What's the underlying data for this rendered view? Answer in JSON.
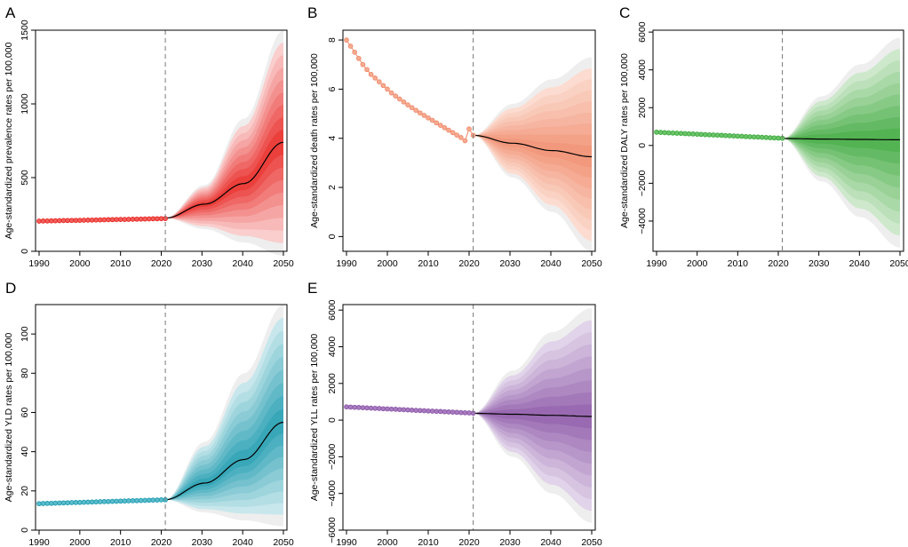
{
  "figure": {
    "description": "BAPC projections of age-standardized rates, 1990-2050",
    "vline_year": 2021
  },
  "chart_data": [
    {
      "id": "A",
      "panel_letter": "A",
      "type": "line",
      "ylabel": "Age-standardized prevalence rates per 100,000",
      "xlim": [
        1990,
        2050
      ],
      "ylim": [
        0,
        1500
      ],
      "xticks": [
        1990,
        2000,
        2010,
        2020,
        2030,
        2040,
        2050
      ],
      "yticks": [
        0,
        500,
        1000,
        1500
      ],
      "ytick_labels": [
        "0",
        "500",
        "1000",
        "1500"
      ],
      "color": "#e8221e",
      "fill_light": "#fbe3e2",
      "point_fill": "#f0605c",
      "observed": {
        "start": 1990,
        "end": 2021,
        "start_value": 205,
        "end_value": 222
      },
      "forecast": {
        "start": 2021,
        "end": 2050,
        "values": [
          225,
          320,
          460,
          740
        ]
      },
      "interval_outer": {
        "lower": [
          225,
          150,
          60,
          -30
        ],
        "upper": [
          225,
          450,
          900,
          1500
        ]
      }
    },
    {
      "id": "B",
      "panel_letter": "B",
      "type": "line",
      "ylabel": "Age-standardized death rates per 100,000",
      "xlim": [
        1990,
        2050
      ],
      "ylim": [
        -0.6,
        8.4
      ],
      "xticks": [
        1990,
        2000,
        2010,
        2020,
        2030,
        2040,
        2050
      ],
      "yticks": [
        0,
        2,
        4,
        6,
        8
      ],
      "ytick_labels": [
        "0",
        "2",
        "4",
        "6",
        "8"
      ],
      "color": "#f08a6b",
      "fill_light": "#fde6dc",
      "point_fill": "#f5ab92",
      "observed_points": [
        [
          1990,
          8.0
        ],
        [
          1991,
          7.75
        ],
        [
          1992,
          7.5
        ],
        [
          1993,
          7.25
        ],
        [
          1994,
          7.0
        ],
        [
          1995,
          6.8
        ],
        [
          1996,
          6.6
        ],
        [
          1997,
          6.45
        ],
        [
          1998,
          6.3
        ],
        [
          1999,
          6.15
        ],
        [
          2000,
          6.0
        ],
        [
          2001,
          5.85
        ],
        [
          2002,
          5.72
        ],
        [
          2003,
          5.6
        ],
        [
          2004,
          5.48
        ],
        [
          2005,
          5.36
        ],
        [
          2006,
          5.25
        ],
        [
          2007,
          5.14
        ],
        [
          2008,
          5.03
        ],
        [
          2009,
          4.93
        ],
        [
          2010,
          4.83
        ],
        [
          2011,
          4.73
        ],
        [
          2012,
          4.63
        ],
        [
          2013,
          4.53
        ],
        [
          2014,
          4.43
        ],
        [
          2015,
          4.33
        ],
        [
          2016,
          4.23
        ],
        [
          2017,
          4.13
        ],
        [
          2018,
          4.03
        ],
        [
          2019,
          3.9
        ],
        [
          2020,
          4.38
        ],
        [
          2021,
          4.12
        ]
      ],
      "forecast": {
        "start": 2021,
        "end": 2050,
        "values": [
          4.12,
          3.8,
          3.5,
          3.25
        ]
      },
      "interval_outer": {
        "lower": [
          4.12,
          2.4,
          1.0,
          -0.6
        ],
        "upper": [
          4.12,
          5.4,
          6.4,
          7.3
        ]
      }
    },
    {
      "id": "C",
      "panel_letter": "C",
      "type": "line",
      "ylabel": "Age-standardized DALY rates per 100,000",
      "xlim": [
        1990,
        2050
      ],
      "ylim": [
        -5600,
        6100
      ],
      "xticks": [
        1990,
        2000,
        2010,
        2020,
        2030,
        2040,
        2050
      ],
      "yticks": [
        -4000,
        -2000,
        0,
        2000,
        4000,
        6000
      ],
      "ytick_labels": [
        "−4000",
        "−2000",
        "0",
        "2000",
        "4000",
        "6000"
      ],
      "color": "#3aa83a",
      "fill_light": "#dff0dc",
      "point_fill": "#6cc46a",
      "observed": {
        "start": 1990,
        "end": 2021,
        "start_value": 700,
        "end_value": 380
      },
      "forecast": {
        "start": 2021,
        "end": 2050,
        "values": [
          370,
          340,
          320,
          300
        ]
      },
      "interval_outer": {
        "lower": [
          370,
          -1900,
          -3800,
          -5400
        ],
        "upper": [
          370,
          2600,
          4300,
          5700
        ]
      }
    },
    {
      "id": "D",
      "panel_letter": "D",
      "type": "line",
      "ylabel": "Age-standardized YLD rates per 100,000",
      "xlim": [
        1990,
        2050
      ],
      "ylim": [
        0,
        115
      ],
      "xticks": [
        1990,
        2000,
        2010,
        2020,
        2030,
        2040,
        2050
      ],
      "yticks": [
        0,
        20,
        40,
        60,
        80,
        100
      ],
      "ytick_labels": [
        "0",
        "20",
        "40",
        "60",
        "80",
        "100"
      ],
      "color": "#1b9aae",
      "fill_light": "#dcf0f3",
      "point_fill": "#5bbccc",
      "observed": {
        "start": 1990,
        "end": 2021,
        "start_value": 13.5,
        "end_value": 15.5
      },
      "forecast": {
        "start": 2021,
        "end": 2050,
        "values": [
          15.5,
          24,
          36,
          55
        ]
      },
      "interval_outer": {
        "lower": [
          15.5,
          9,
          5,
          2
        ],
        "upper": [
          15.5,
          45,
          80,
          115
        ]
      }
    },
    {
      "id": "E",
      "panel_letter": "E",
      "type": "line",
      "ylabel": "Age-standardized YLL rates per 100,000",
      "xlim": [
        1990,
        2050
      ],
      "ylim": [
        -6000,
        6300
      ],
      "xticks": [
        1990,
        2000,
        2010,
        2020,
        2030,
        2040,
        2050
      ],
      "yticks": [
        -6000,
        -4000,
        -2000,
        0,
        2000,
        4000,
        6000
      ],
      "ytick_labels": [
        "−6000",
        "−4000",
        "−2000",
        "0",
        "2000",
        "4000",
        "6000"
      ],
      "color": "#8a55a6",
      "fill_light": "#ebe2f1",
      "point_fill": "#a87cc0",
      "observed": {
        "start": 1990,
        "end": 2021,
        "start_value": 720,
        "end_value": 380
      },
      "forecast": {
        "start": 2021,
        "end": 2050,
        "values": [
          370,
          320,
          260,
          200
        ]
      },
      "interval_outer": {
        "lower": [
          370,
          -2000,
          -4000,
          -5600
        ],
        "upper": [
          370,
          2700,
          4800,
          6100
        ]
      }
    }
  ]
}
